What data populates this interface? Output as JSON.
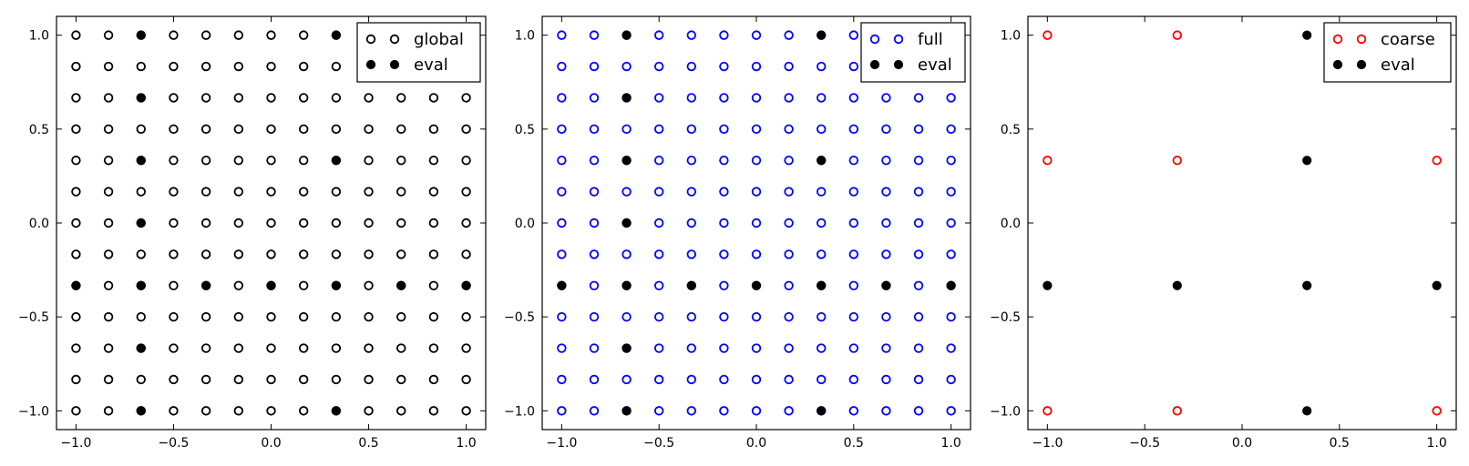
{
  "colors": {
    "global": "#000000",
    "full": "#0000ff",
    "coarse": "#ff0000",
    "eval": "#000000",
    "axis": "#000000",
    "background": "#ffffff"
  },
  "chart_data": [
    {
      "type": "scatter",
      "title": "",
      "xlabel": "",
      "ylabel": "",
      "xlim": [
        -1.1,
        1.1
      ],
      "ylim": [
        -1.1,
        1.1
      ],
      "xticks": [
        -1.0,
        -0.5,
        0.0,
        0.5,
        1.0
      ],
      "yticks": [
        -1.0,
        -0.5,
        0.0,
        0.5,
        1.0
      ],
      "xtick_labels": [
        "−1.0",
        "−0.5",
        "0.0",
        "0.5",
        "1.0"
      ],
      "ytick_labels": [
        "−1.0",
        "−0.5",
        "0.0",
        "0.5",
        "1.0"
      ],
      "grid": false,
      "legend_position": "top-right",
      "series": [
        {
          "name": "global",
          "marker": "open-circle",
          "color": "#000000",
          "grid_n": 13,
          "points_rule": "all points of a 13x13 uniform grid on [-1,1] x [-1,1]"
        },
        {
          "name": "eval",
          "marker": "filled-circle",
          "color": "#000000",
          "points": [
            [
              -0.6667,
              1.0
            ],
            [
              0.3333,
              1.0
            ],
            [
              -0.6667,
              0.6667
            ],
            [
              -0.6667,
              0.3333
            ],
            [
              0.3333,
              0.3333
            ],
            [
              -0.6667,
              0.0
            ],
            [
              -1.0,
              -0.3333
            ],
            [
              -0.6667,
              -0.3333
            ],
            [
              -0.3333,
              -0.3333
            ],
            [
              0.0,
              -0.3333
            ],
            [
              0.3333,
              -0.3333
            ],
            [
              0.6667,
              -0.3333
            ],
            [
              1.0,
              -0.3333
            ],
            [
              -0.6667,
              -0.6667
            ],
            [
              -0.6667,
              -1.0
            ],
            [
              0.3333,
              -1.0
            ]
          ]
        }
      ]
    },
    {
      "type": "scatter",
      "title": "",
      "xlabel": "",
      "ylabel": "",
      "xlim": [
        -1.1,
        1.1
      ],
      "ylim": [
        -1.1,
        1.1
      ],
      "xticks": [
        -1.0,
        -0.5,
        0.0,
        0.5,
        1.0
      ],
      "yticks": [
        -1.0,
        -0.5,
        0.0,
        0.5,
        1.0
      ],
      "xtick_labels": [
        "−1.0",
        "−0.5",
        "0.0",
        "0.5",
        "1.0"
      ],
      "ytick_labels": [
        "−1.0",
        "−0.5",
        "0.0",
        "0.5",
        "1.0"
      ],
      "grid": false,
      "legend_position": "top-right",
      "series": [
        {
          "name": "full",
          "marker": "open-circle",
          "color": "#0000ff",
          "grid_n": 13,
          "points_rule": "all points of a 13x13 uniform grid on [-1,1] x [-1,1]"
        },
        {
          "name": "eval",
          "marker": "filled-circle",
          "color": "#000000",
          "points": [
            [
              -0.6667,
              1.0
            ],
            [
              0.3333,
              1.0
            ],
            [
              -0.6667,
              0.6667
            ],
            [
              -0.6667,
              0.3333
            ],
            [
              0.3333,
              0.3333
            ],
            [
              -0.6667,
              0.0
            ],
            [
              -1.0,
              -0.3333
            ],
            [
              -0.6667,
              -0.3333
            ],
            [
              -0.3333,
              -0.3333
            ],
            [
              0.0,
              -0.3333
            ],
            [
              0.3333,
              -0.3333
            ],
            [
              0.6667,
              -0.3333
            ],
            [
              1.0,
              -0.3333
            ],
            [
              -0.6667,
              -0.6667
            ],
            [
              -0.6667,
              -1.0
            ],
            [
              0.3333,
              -1.0
            ]
          ]
        }
      ]
    },
    {
      "type": "scatter",
      "title": "",
      "xlabel": "",
      "ylabel": "",
      "xlim": [
        -1.1,
        1.1
      ],
      "ylim": [
        -1.1,
        1.1
      ],
      "xticks": [
        -1.0,
        -0.5,
        0.0,
        0.5,
        1.0
      ],
      "yticks": [
        -1.0,
        -0.5,
        0.0,
        0.5,
        1.0
      ],
      "xtick_labels": [
        "−1.0",
        "−0.5",
        "0.0",
        "0.5",
        "1.0"
      ],
      "ytick_labels": [
        "−1.0",
        "−0.5",
        "0.0",
        "0.5",
        "1.0"
      ],
      "grid": false,
      "legend_position": "top-right",
      "series": [
        {
          "name": "coarse",
          "marker": "open-circle",
          "color": "#ff0000",
          "points": [
            [
              -1.0,
              1.0
            ],
            [
              -0.3333,
              1.0
            ],
            [
              1.0,
              1.0
            ],
            [
              -1.0,
              0.3333
            ],
            [
              -0.3333,
              0.3333
            ],
            [
              1.0,
              0.3333
            ],
            [
              -1.0,
              -1.0
            ],
            [
              -0.3333,
              -1.0
            ],
            [
              1.0,
              -1.0
            ]
          ]
        },
        {
          "name": "eval",
          "marker": "filled-circle",
          "color": "#000000",
          "points": [
            [
              0.3333,
              1.0
            ],
            [
              0.3333,
              0.3333
            ],
            [
              -1.0,
              -0.3333
            ],
            [
              -0.3333,
              -0.3333
            ],
            [
              0.3333,
              -0.3333
            ],
            [
              1.0,
              -0.3333
            ],
            [
              0.3333,
              -1.0
            ]
          ]
        }
      ]
    }
  ]
}
